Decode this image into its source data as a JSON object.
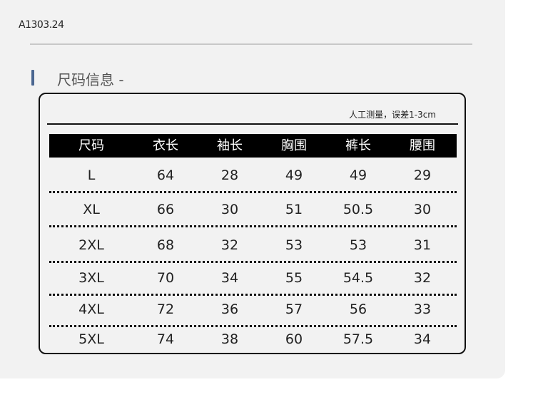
{
  "product_code": "A1303.24",
  "section_title": "尺码信息 -",
  "note": "人工测量，误差1-3cm",
  "colors": {
    "accent": "#4a6690",
    "header_bg": "#000000",
    "panel_bg": "#f2f2f2"
  },
  "table": {
    "headers": [
      "尺码",
      "衣长",
      "袖长",
      "胸围",
      "裤长",
      "腰围"
    ],
    "rows": [
      [
        "L",
        "64",
        "28",
        "49",
        "49",
        "29"
      ],
      [
        "XL",
        "66",
        "30",
        "51",
        "50.5",
        "30"
      ],
      [
        "2XL",
        "68",
        "32",
        "53",
        "53",
        "31"
      ],
      [
        "3XL",
        "70",
        "34",
        "55",
        "54.5",
        "32"
      ],
      [
        "4XL",
        "72",
        "36",
        "57",
        "56",
        "33"
      ],
      [
        "5XL",
        "74",
        "38",
        "60",
        "57.5",
        "34"
      ]
    ]
  }
}
